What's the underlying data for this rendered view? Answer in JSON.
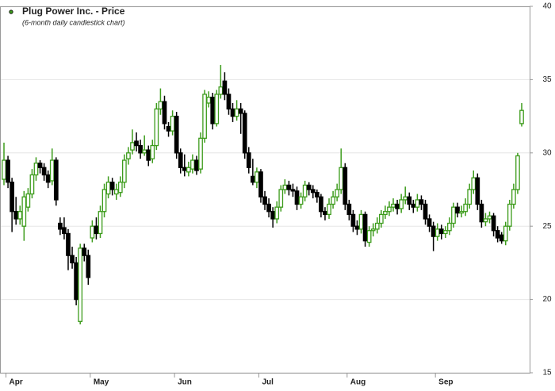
{
  "chart_data": {
    "type": "candlestick",
    "title": "Plug Power Inc. - Price",
    "subtitle": "(6-month daily candlestick chart)",
    "up_color": "#3d9c1c",
    "down_color": "#000000",
    "grid": true,
    "legend": "top-left",
    "ylim": [
      15,
      40
    ],
    "yticks": [
      15,
      20,
      25,
      30,
      35,
      40
    ],
    "categories": [
      null,
      "Apr",
      null,
      null,
      null,
      null,
      null,
      null,
      null,
      null,
      null,
      null,
      null,
      null,
      null,
      null,
      null,
      null,
      null,
      null,
      null,
      null,
      "May",
      null,
      null,
      null,
      null,
      null,
      null,
      null,
      null,
      null,
      null,
      null,
      null,
      null,
      null,
      null,
      null,
      null,
      null,
      null,
      null,
      "Jun",
      null,
      null,
      null,
      null,
      null,
      null,
      null,
      null,
      null,
      null,
      null,
      null,
      null,
      null,
      null,
      null,
      null,
      null,
      null,
      null,
      "Jul",
      null,
      null,
      null,
      null,
      null,
      null,
      null,
      null,
      null,
      null,
      null,
      null,
      null,
      null,
      null,
      null,
      null,
      null,
      null,
      null,
      null,
      "Aug",
      null,
      null,
      null,
      null,
      null,
      null,
      null,
      null,
      null,
      null,
      null,
      null,
      null,
      null,
      null,
      null,
      null,
      null,
      null,
      null,
      null,
      "Sep",
      null,
      null,
      null,
      null,
      null,
      null,
      null,
      null,
      null,
      null,
      null,
      null,
      null,
      null,
      null,
      null,
      null,
      null,
      null,
      null,
      null
    ],
    "values": [
      [
        28.2,
        30.7,
        27.8,
        29.5
      ],
      [
        29.5,
        29.8,
        27.6,
        28
      ],
      [
        28,
        28.3,
        24.6,
        26
      ],
      [
        26,
        27,
        25.1,
        25.5
      ],
      [
        25.5,
        26.4,
        25.1,
        26
      ],
      [
        25,
        27.4,
        24,
        27
      ],
      [
        26.3,
        27.6,
        26,
        27.2
      ],
      [
        27.2,
        28.9,
        26.9,
        28.5
      ],
      [
        28.5,
        29.7,
        28.1,
        29.3
      ],
      [
        29.3,
        29.5,
        28.6,
        29
      ],
      [
        29,
        29.3,
        28.1,
        28.5
      ],
      [
        28.5,
        28.8,
        27.6,
        28
      ],
      [
        28.1,
        30.3,
        27.8,
        29.5
      ],
      [
        29.5,
        29.7,
        26.4,
        26.8
      ],
      [
        25.2,
        25.6,
        24.4,
        24.8
      ],
      [
        24.9,
        25.6,
        24.1,
        24.5
      ],
      [
        24.5,
        24.8,
        22,
        23
      ],
      [
        23,
        23.6,
        22.1,
        22.5
      ],
      [
        22.5,
        22.9,
        19.6,
        20
      ],
      [
        18.5,
        23.8,
        18.3,
        23.5
      ],
      [
        23.5,
        23.8,
        22.6,
        23
      ],
      [
        23,
        23.4,
        21,
        21.5
      ],
      [
        24.2,
        25.4,
        23.9,
        25
      ],
      [
        25,
        25.6,
        24.1,
        24.5
      ],
      [
        24.5,
        26.4,
        24.2,
        26
      ],
      [
        26,
        27.9,
        25.6,
        27.5
      ],
      [
        27.2,
        28.4,
        26.9,
        28
      ],
      [
        28,
        28.3,
        27.1,
        27.5
      ],
      [
        27.2,
        27.9,
        26.8,
        27.5
      ],
      [
        27.3,
        28.4,
        27,
        28
      ],
      [
        28,
        29.9,
        27.6,
        29.5
      ],
      [
        29.6,
        30.4,
        29.2,
        30
      ],
      [
        30.2,
        31.6,
        29.9,
        30.7
      ],
      [
        30.8,
        31.4,
        30.1,
        30.5
      ],
      [
        30.5,
        30.9,
        29.6,
        30
      ],
      [
        30,
        31.2,
        29.8,
        30.2
      ],
      [
        30.2,
        30.5,
        29.1,
        29.5
      ],
      [
        29.6,
        30.9,
        29.3,
        30.5
      ],
      [
        30.5,
        33.4,
        30.2,
        33
      ],
      [
        33,
        34.4,
        32.6,
        33.5
      ],
      [
        33.5,
        33.9,
        31.6,
        32
      ],
      [
        31.8,
        32.1,
        31.1,
        31.5
      ],
      [
        31.5,
        32.9,
        31.2,
        32.5
      ],
      [
        32.5,
        32.8,
        29.6,
        30
      ],
      [
        30,
        30.3,
        28.6,
        29
      ],
      [
        29,
        29.9,
        28.4,
        28.8
      ],
      [
        28.7,
        29.4,
        28.4,
        29
      ],
      [
        28.9,
        29.9,
        28.6,
        29.5
      ],
      [
        29.5,
        29.8,
        28.5,
        28.8
      ],
      [
        28.9,
        31.4,
        28.6,
        31
      ],
      [
        31,
        34.3,
        30.7,
        34
      ],
      [
        33.4,
        34.2,
        33.1,
        33.8
      ],
      [
        33.8,
        34.1,
        31.6,
        32
      ],
      [
        32,
        34.3,
        31.8,
        34
      ],
      [
        34,
        36,
        33.7,
        34.5
      ],
      [
        34.9,
        35.5,
        33.6,
        34
      ],
      [
        34,
        34.4,
        32.6,
        33
      ],
      [
        33,
        33.4,
        32.1,
        32.5
      ],
      [
        32.5,
        33.6,
        32.2,
        33
      ],
      [
        33,
        33.4,
        31.3,
        32.7
      ],
      [
        32.7,
        32.9,
        29.6,
        30
      ],
      [
        30,
        30.4,
        28.6,
        29
      ],
      [
        28.4,
        29.6,
        27.8,
        28
      ],
      [
        28,
        29,
        27.6,
        28.7
      ],
      [
        28.7,
        28.9,
        26.6,
        27
      ],
      [
        27,
        27.4,
        26.1,
        26.5
      ],
      [
        26.5,
        26.9,
        25.6,
        26
      ],
      [
        26,
        26.3,
        24.9,
        25.5
      ],
      [
        25.5,
        26.7,
        25.2,
        26.3
      ],
      [
        26.3,
        27.8,
        26,
        27.5
      ],
      [
        27.5,
        28.2,
        27.2,
        27.8
      ],
      [
        27.8,
        28.1,
        27.1,
        27.5
      ],
      [
        27.5,
        27.9,
        27,
        27.4
      ],
      [
        27.4,
        27.7,
        26.1,
        26.5
      ],
      [
        26.5,
        27.3,
        26.2,
        27
      ],
      [
        27,
        28.1,
        26.7,
        27.8
      ],
      [
        27.8,
        28,
        27.1,
        27.5
      ],
      [
        27.5,
        27.8,
        26.9,
        27.3
      ],
      [
        27.3,
        27.5,
        26.6,
        27
      ],
      [
        27,
        27.2,
        25.6,
        26
      ],
      [
        26,
        26.3,
        25.4,
        25.8
      ],
      [
        25.8,
        26.9,
        25.5,
        26.5
      ],
      [
        26.5,
        27.4,
        26.2,
        27
      ],
      [
        27,
        27.9,
        26.7,
        27.5
      ],
      [
        27.5,
        30.3,
        27.2,
        29
      ],
      [
        29,
        29.3,
        26.1,
        26.5
      ],
      [
        26.5,
        26.8,
        25.4,
        25.8
      ],
      [
        25.8,
        26.1,
        24.6,
        25
      ],
      [
        25,
        25.4,
        24.4,
        24.8
      ],
      [
        24.8,
        26.1,
        24.5,
        25.8
      ],
      [
        25.8,
        26,
        23.6,
        24
      ],
      [
        23.9,
        25,
        23.6,
        24.7
      ],
      [
        24.7,
        25.2,
        24.3,
        24.8
      ],
      [
        24.8,
        25.6,
        24.5,
        25.2
      ],
      [
        25.2,
        26.1,
        24.9,
        25.8
      ],
      [
        25.8,
        26.4,
        25.5,
        26
      ],
      [
        26,
        26.7,
        25.7,
        26.3
      ],
      [
        26.3,
        26.9,
        26,
        26.5
      ],
      [
        26.5,
        26.8,
        25.8,
        26.2
      ],
      [
        26.2,
        27.2,
        25.9,
        26.8
      ],
      [
        26.8,
        27.7,
        26.5,
        27
      ],
      [
        27,
        27.3,
        26.1,
        26.5
      ],
      [
        26.5,
        26.8,
        25.9,
        26.3
      ],
      [
        26.3,
        27.2,
        26,
        26.8
      ],
      [
        26.8,
        27.1,
        26.1,
        26.5
      ],
      [
        26.5,
        26.8,
        25.1,
        25.5
      ],
      [
        25.5,
        25.8,
        24.6,
        25
      ],
      [
        25,
        25.3,
        23.3,
        24.3
      ],
      [
        24.3,
        25.2,
        24,
        24.8
      ],
      [
        24.8,
        25.1,
        24.1,
        24.5
      ],
      [
        24.5,
        25,
        24.2,
        24.7
      ],
      [
        24.7,
        25.6,
        24.4,
        25.2
      ],
      [
        25.2,
        26.6,
        24.9,
        26.3
      ],
      [
        26.3,
        26.6,
        25.6,
        25.9
      ],
      [
        25.9,
        26.4,
        25.6,
        26
      ],
      [
        26,
        26.9,
        25.7,
        26.5
      ],
      [
        26.5,
        27.9,
        26.2,
        27.5
      ],
      [
        27.5,
        28.8,
        27.2,
        28.3
      ],
      [
        28.3,
        28.6,
        26.1,
        26.5
      ],
      [
        26.5,
        26.8,
        24.9,
        25.3
      ],
      [
        25.3,
        25.9,
        25,
        25.5
      ],
      [
        25.5,
        26,
        25.2,
        25.7
      ],
      [
        25.7,
        25.9,
        24.3,
        24.7
      ],
      [
        24.7,
        25,
        23.9,
        24.2
      ],
      [
        24.4,
        24.6,
        23.8,
        24
      ],
      [
        24,
        25.3,
        23.7,
        25
      ],
      [
        25,
        26.8,
        24.7,
        26.5
      ],
      [
        26.5,
        27.9,
        26.2,
        27.5
      ],
      [
        27.5,
        30,
        27.2,
        29.8
      ],
      [
        32,
        33.4,
        31.8,
        32.9
      ]
    ]
  }
}
